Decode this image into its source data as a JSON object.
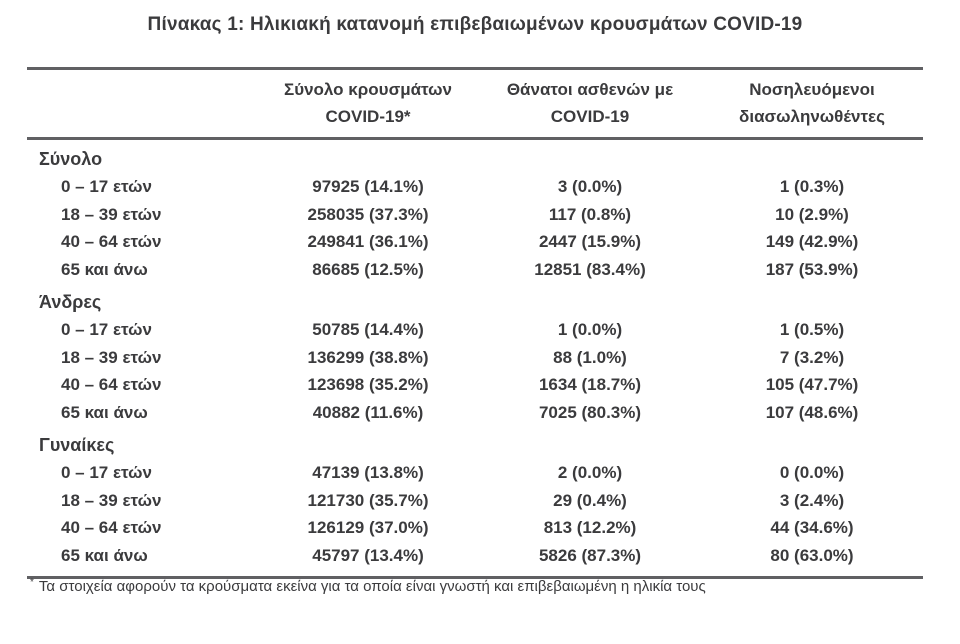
{
  "title": "Πίνακας 1: Ηλικιακή κατανομή επιβεβαιωμένων κρουσμάτων COVID-19",
  "colors": {
    "text": "#3b3b3d",
    "rule_line": "#606063"
  },
  "table": {
    "columns": [
      {
        "line1": "Σύνολο κρουσμάτων",
        "line2": "COVID-19*"
      },
      {
        "line1": "Θάνατοι ασθενών με",
        "line2": "COVID-19"
      },
      {
        "line1": "Νοσηλευόμενοι",
        "line2": "διασωληνωθέντες"
      }
    ],
    "sections": [
      {
        "label": "Σύνολο",
        "rows": [
          {
            "age": "0 – 17 ετών",
            "cases": "97925 (14.1%)",
            "deaths": "3 (0.0%)",
            "intubated": "1 (0.3%)"
          },
          {
            "age": "18 – 39 ετών",
            "cases": "258035 (37.3%)",
            "deaths": "117 (0.8%)",
            "intubated": "10 (2.9%)"
          },
          {
            "age": "40 – 64 ετών",
            "cases": "249841 (36.1%)",
            "deaths": "2447 (15.9%)",
            "intubated": "149 (42.9%)"
          },
          {
            "age": "65 και άνω",
            "cases": "86685 (12.5%)",
            "deaths": "12851 (83.4%)",
            "intubated": "187 (53.9%)"
          }
        ]
      },
      {
        "label": "Άνδρες",
        "rows": [
          {
            "age": "0 – 17 ετών",
            "cases": "50785 (14.4%)",
            "deaths": "1 (0.0%)",
            "intubated": "1 (0.5%)"
          },
          {
            "age": "18 – 39 ετών",
            "cases": "136299 (38.8%)",
            "deaths": "88 (1.0%)",
            "intubated": "7 (3.2%)"
          },
          {
            "age": "40 – 64 ετών",
            "cases": "123698 (35.2%)",
            "deaths": "1634 (18.7%)",
            "intubated": "105 (47.7%)"
          },
          {
            "age": "65 και άνω",
            "cases": "40882 (11.6%)",
            "deaths": "7025 (80.3%)",
            "intubated": "107 (48.6%)"
          }
        ]
      },
      {
        "label": "Γυναίκες",
        "rows": [
          {
            "age": "0 – 17 ετών",
            "cases": "47139 (13.8%)",
            "deaths": "2 (0.0%)",
            "intubated": "0 (0.0%)"
          },
          {
            "age": "18 – 39 ετών",
            "cases": "121730 (35.7%)",
            "deaths": "29 (0.4%)",
            "intubated": "3 (2.4%)"
          },
          {
            "age": "40 – 64 ετών",
            "cases": "126129 (37.0%)",
            "deaths": "813 (12.2%)",
            "intubated": "44 (34.6%)"
          },
          {
            "age": "65 και άνω",
            "cases": "45797 (13.4%)",
            "deaths": "5826 (87.3%)",
            "intubated": "80 (63.0%)"
          }
        ]
      }
    ]
  },
  "footnote": {
    "marker": "*",
    "text": "Τα στοιχεία αφορούν τα κρούσματα εκείνα για τα οποία είναι γνωστή και επιβεβαιωμένη η ηλικία τους"
  }
}
